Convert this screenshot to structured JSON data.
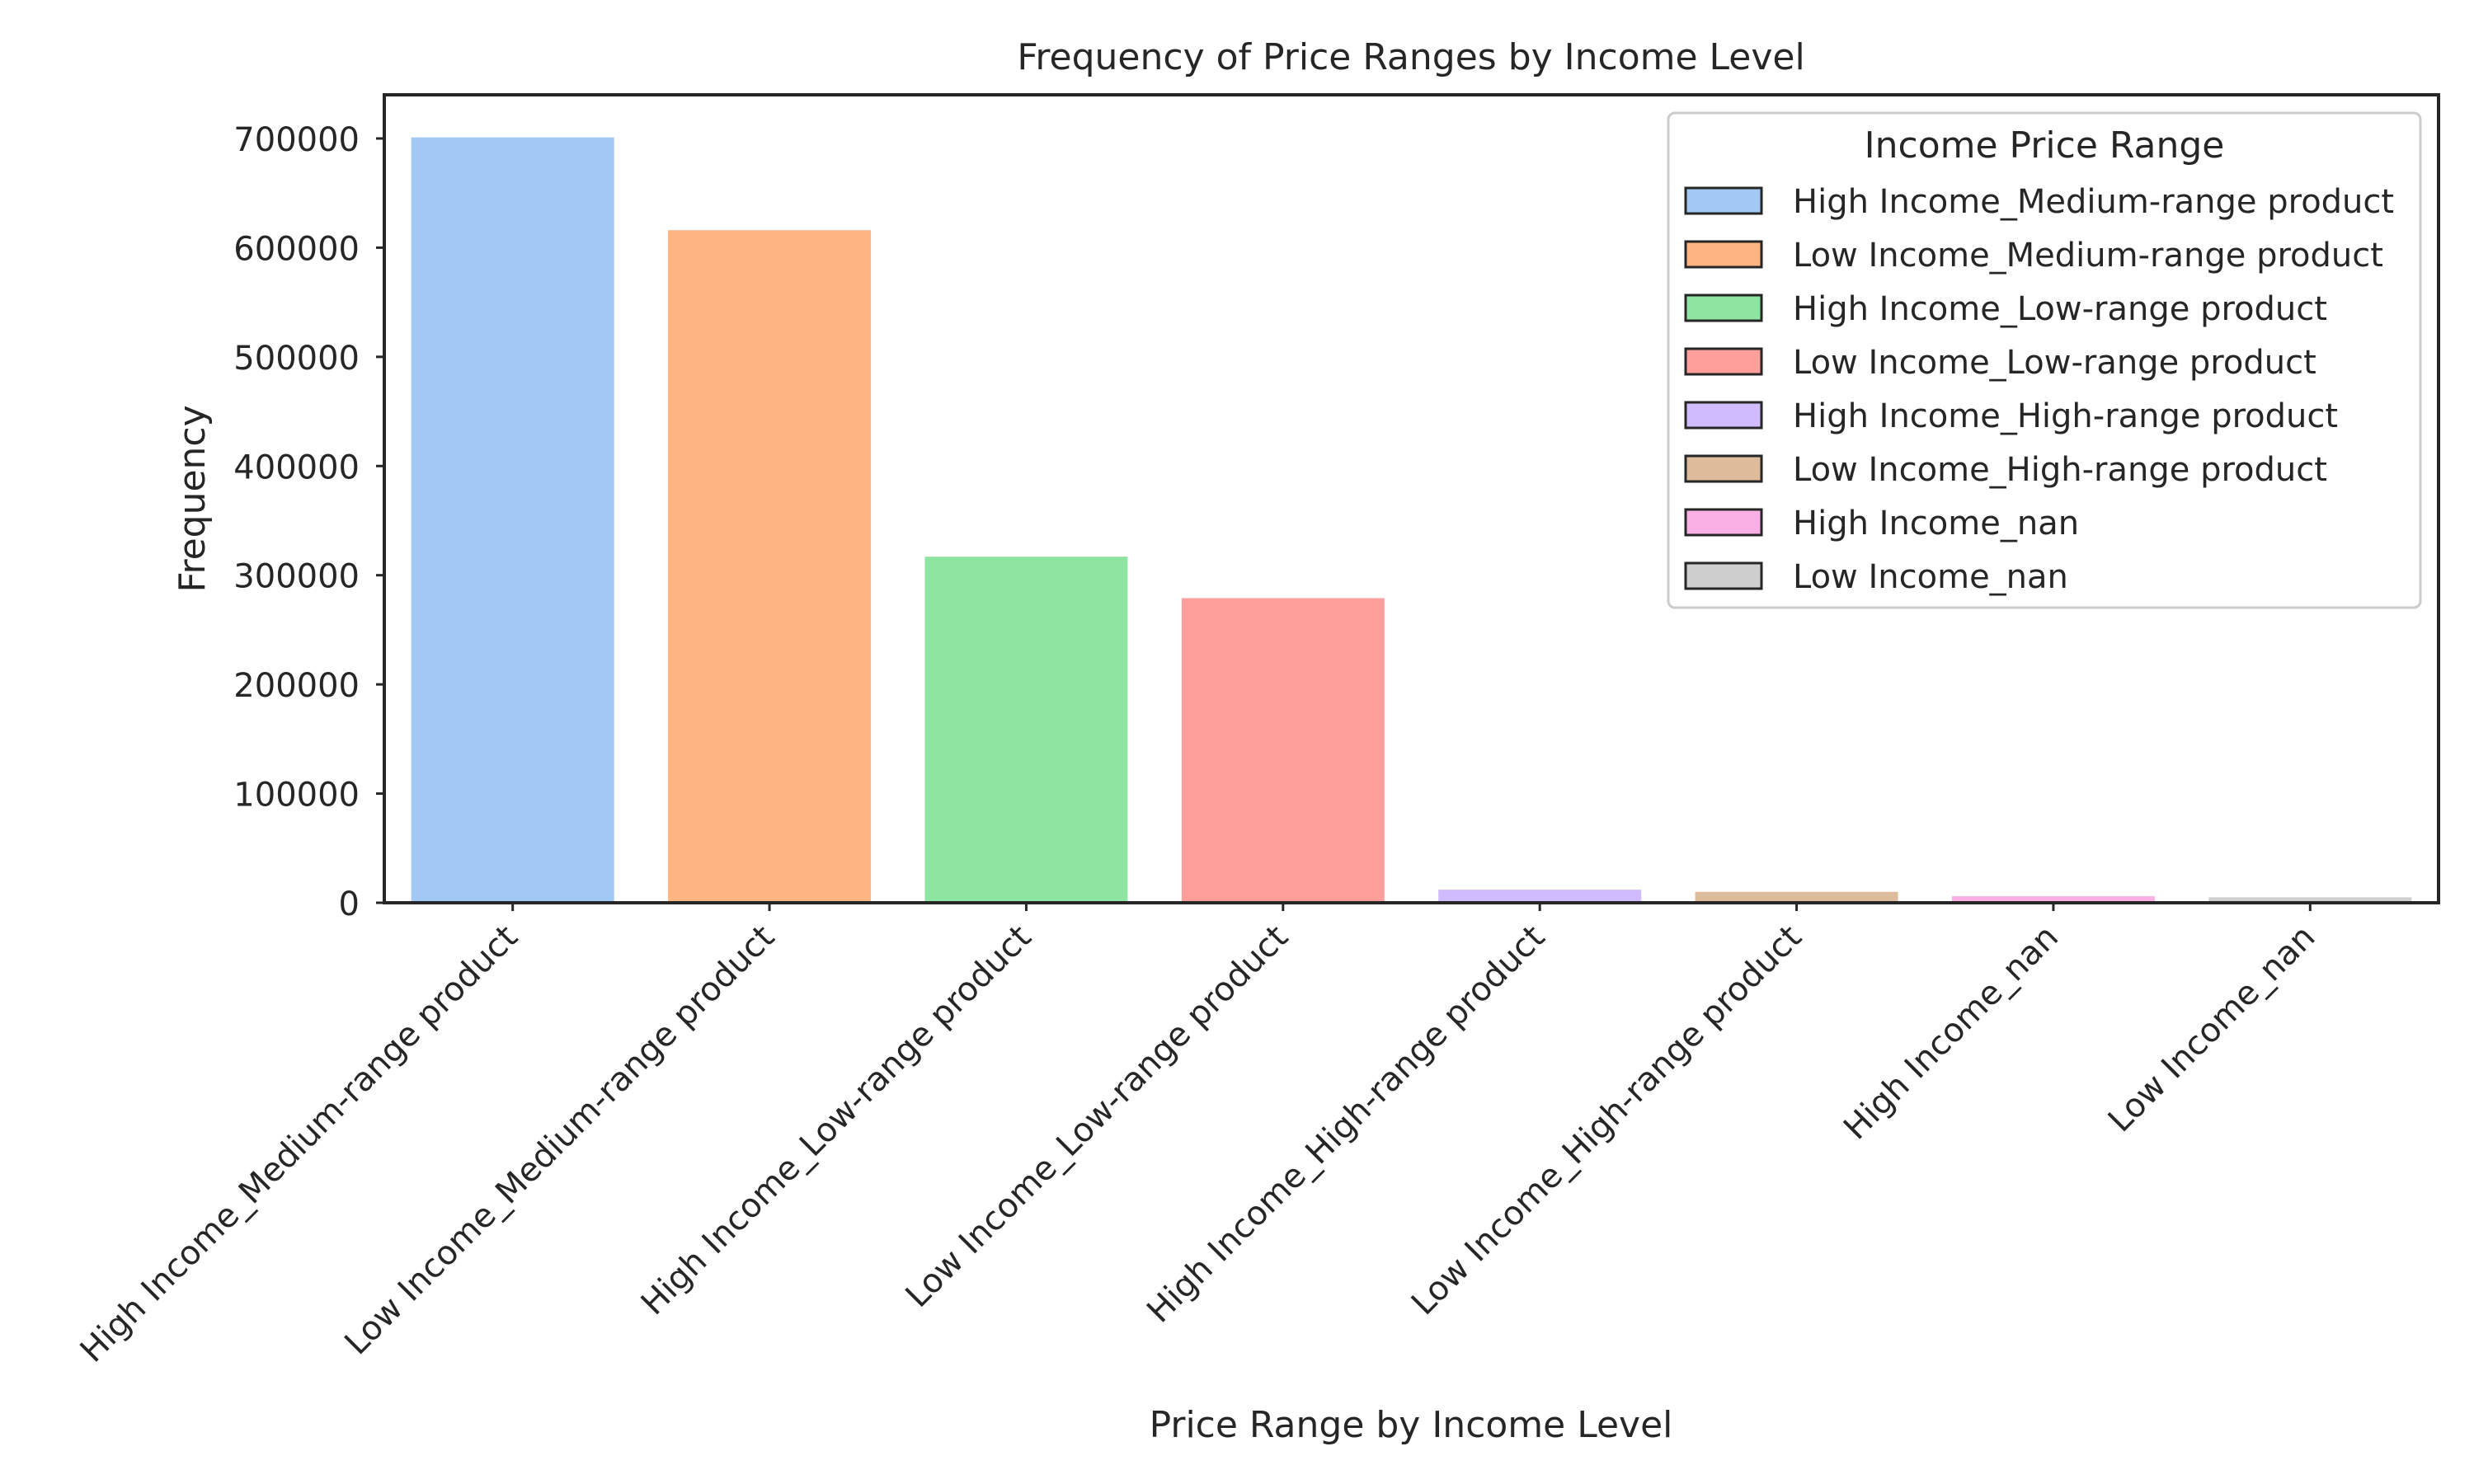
{
  "chart_data": {
    "type": "bar",
    "title": "Frequency of Price Ranges by Income Level",
    "xlabel": "Price Range by Income Level",
    "ylabel": "Frequency",
    "ylim": [
      0,
      740000
    ],
    "yticks": [
      0,
      100000,
      200000,
      300000,
      400000,
      500000,
      600000,
      700000
    ],
    "categories": [
      "High Income_Medium-range product",
      "Low Income_Medium-range product",
      "High Income_Low-range product",
      "Low Income_Low-range product",
      "High Income_High-range product",
      "Low Income_High-range product",
      "High Income_nan",
      "Low Income_nan"
    ],
    "values": [
      701000,
      616000,
      317000,
      279000,
      12000,
      10000,
      6000,
      5000
    ],
    "colors": [
      "#a1c9f4",
      "#ffb482",
      "#8de5a1",
      "#ff9f9b",
      "#d0bbff",
      "#debb9b",
      "#fab0e4",
      "#cfcfcf"
    ],
    "grid": false,
    "legend": {
      "title": "Income Price Range",
      "placement": "top-right",
      "entries": [
        "High Income_Medium-range product",
        "Low Income_Medium-range product",
        "High Income_Low-range product",
        "Low Income_Low-range product",
        "High Income_High-range product",
        "Low Income_High-range product",
        "High Income_nan",
        "Low Income_nan"
      ]
    }
  }
}
